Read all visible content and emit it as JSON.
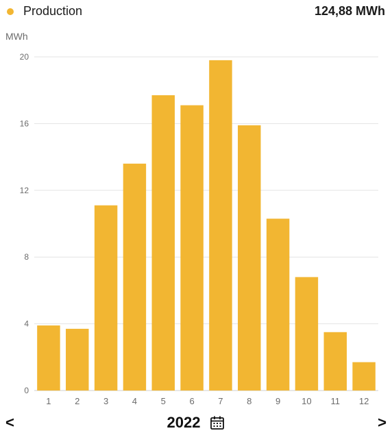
{
  "header": {
    "legend_label": "Production",
    "total": "124,88 MWh"
  },
  "icons": {
    "legend_dot": "dot-icon",
    "calendar": "calendar-icon",
    "prev": "chevron-left-icon",
    "next": "chevron-right-icon"
  },
  "colors": {
    "bar": "#f2b632",
    "grid": "#e3e3e3",
    "axis_text": "#6b6b6b"
  },
  "footer": {
    "prev_label": "<",
    "year": "2022",
    "next_label": ">"
  },
  "chart_data": {
    "type": "bar",
    "ylabel": "MWh",
    "categories": [
      "1",
      "2",
      "3",
      "4",
      "5",
      "6",
      "7",
      "8",
      "9",
      "10",
      "11",
      "12"
    ],
    "values": [
      3.9,
      3.7,
      11.1,
      13.6,
      17.7,
      17.1,
      19.8,
      15.9,
      10.3,
      6.8,
      3.5,
      1.7
    ],
    "ylim": [
      0,
      20
    ],
    "yticks": [
      0,
      4,
      8,
      12,
      16,
      20
    ],
    "grid": true
  }
}
